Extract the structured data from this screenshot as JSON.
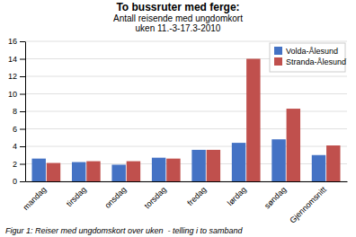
{
  "chart_data": {
    "type": "bar",
    "title": "To bussruter med ferge:",
    "subtitle": [
      "Antall reisende med ungdomkort",
      "uken 11.-3-17.3-2010"
    ],
    "annotations": [
      "Figur 1: Reiser med ungdomskort over uken  - telling i to samband"
    ],
    "categories": [
      "mandag",
      "tirsdag",
      "onsdag",
      "torsdag",
      "fredag",
      "lørdag",
      "søndag",
      "Gjennomsnitt"
    ],
    "series": [
      {
        "name": "Volda-Ålesund",
        "color": "#4472C4",
        "values": [
          2.6,
          2.2,
          1.9,
          2.7,
          3.6,
          4.4,
          4.8,
          3.0
        ]
      },
      {
        "name": "Stranda-Ålesund",
        "color": "#C0504D",
        "values": [
          2.1,
          2.3,
          2.3,
          2.6,
          3.6,
          14.0,
          8.3,
          4.1
        ]
      }
    ],
    "ylim": [
      0,
      16
    ],
    "yticks": [
      0,
      2,
      4,
      6,
      8,
      10,
      12,
      14,
      16
    ],
    "grid": true,
    "legend": "upper-right"
  }
}
